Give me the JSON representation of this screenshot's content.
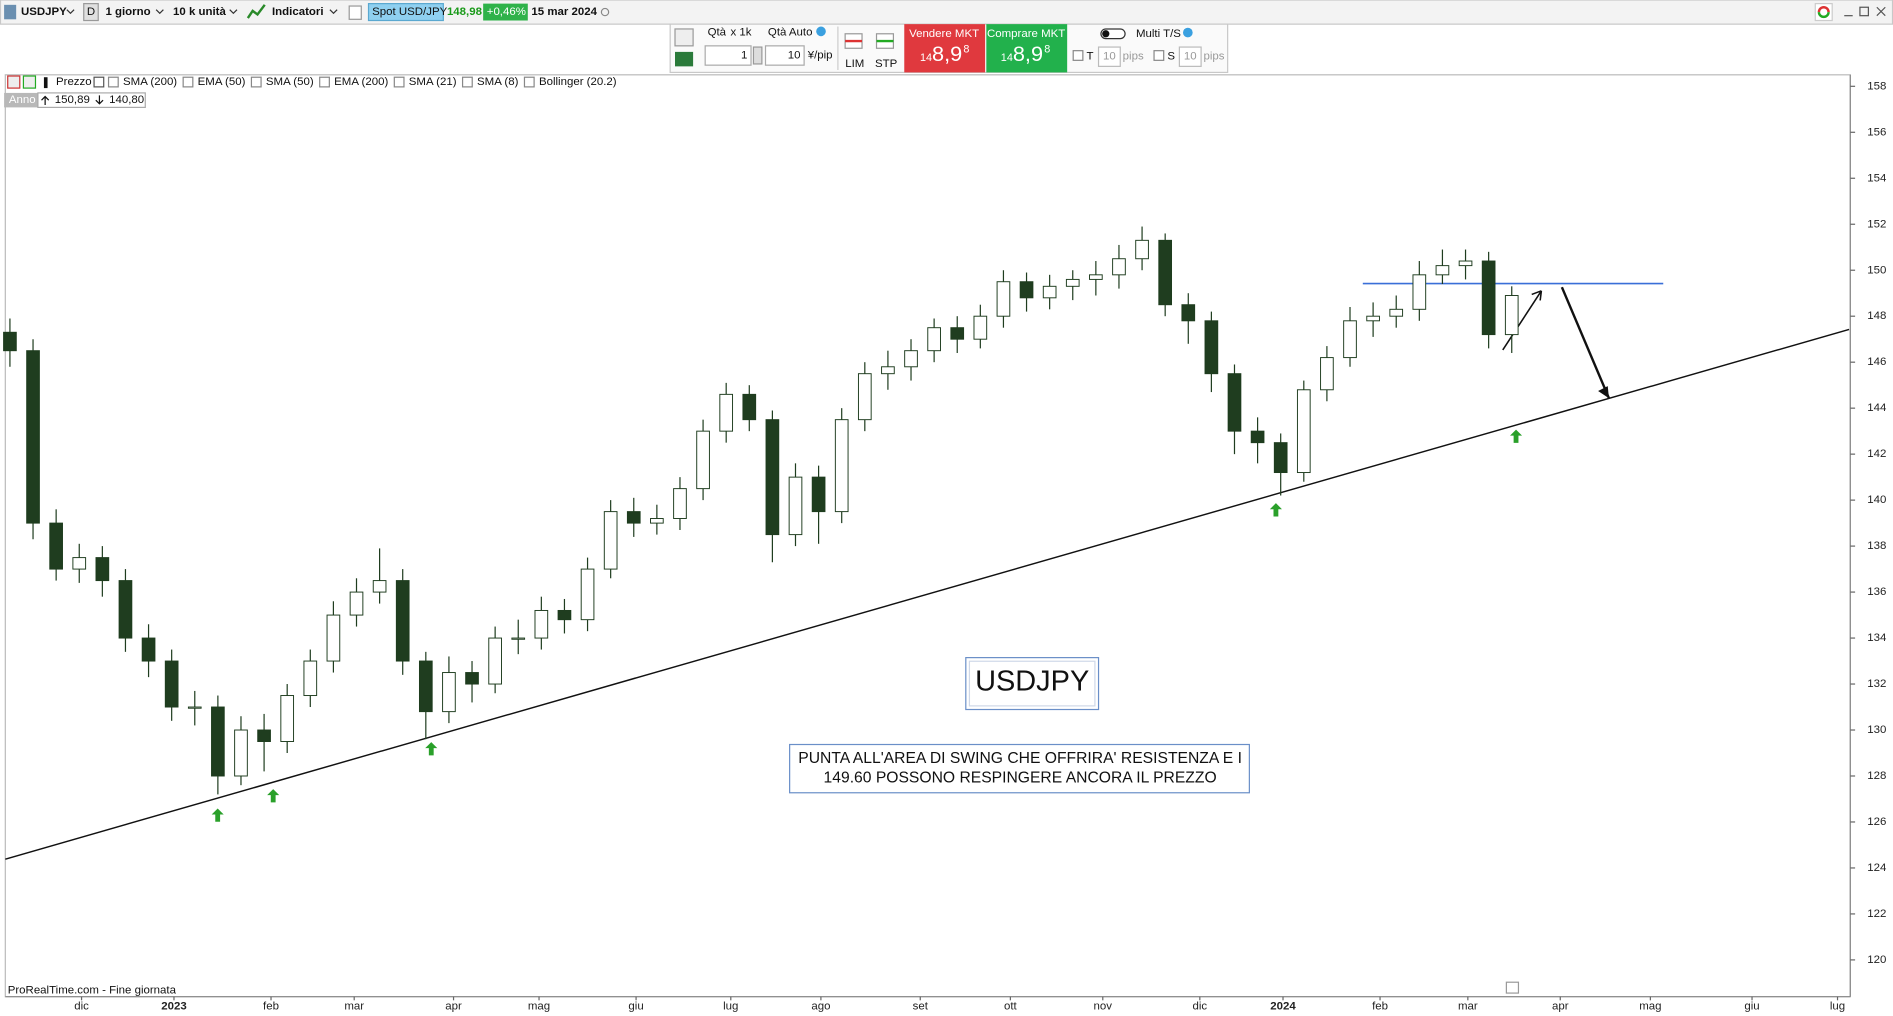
{
  "toolbar": {
    "symbol": "USDJPY",
    "period_flag": "D",
    "timeframe": "1 giorno",
    "quantity": "10 k unità",
    "indicators": "Indicatori",
    "instrument": "Spot USD/JPY",
    "price": "148,98",
    "change": "+0,46%",
    "date": "15 mar 2024"
  },
  "order_panel": {
    "qty": "Qtà",
    "qty_mult": "x 1k",
    "qty_auto": "Qtà Auto",
    "qty_value": "1",
    "pip_value": "10",
    "pip_unit": "¥/pip",
    "lim": "LIM",
    "stp": "STP",
    "sell": {
      "label": "Vendere MKT",
      "prefix": "14",
      "main": "8,9",
      "sup": "8"
    },
    "buy": {
      "label": "Comprare MKT",
      "prefix": "14",
      "main": "8,9",
      "sup": "8"
    },
    "multi": "Multi T/S",
    "t_label": "T",
    "t_value": "10",
    "t_unit": "pips",
    "s_label": "S",
    "s_value": "10",
    "s_unit": "pips"
  },
  "legend": {
    "items": [
      "Prezzo",
      "SMA (200)",
      "EMA (50)",
      "SMA (50)",
      "EMA (200)",
      "SMA (21)",
      "SMA (8)",
      "Bollinger (20.2)"
    ],
    "period": "Anno",
    "high": "150,89",
    "low": "140,80"
  },
  "annotations": {
    "title": "USDJPY",
    "note": [
      "PUNTA ALL'AREA DI  SWING CHE OFFRIRA' RESISTENZA E I",
      "149.60 POSSONO RESPINGERE ANCORA IL PREZZO"
    ]
  },
  "footer": "ProRealTime.com - Fine giornata",
  "chart_data": {
    "type": "candlestick",
    "up_color": "#ffffff",
    "down_color": "#1f3d1f",
    "outline_color": "#1f3d1f",
    "ylim": [
      118.4,
      158.5
    ],
    "yticks": [
      120,
      122,
      124,
      126,
      128,
      130,
      132,
      134,
      136,
      138,
      140,
      142,
      144,
      146,
      148,
      150,
      152,
      154,
      156,
      158
    ],
    "xlim": [
      -0.2,
      79.6
    ],
    "xticks": [
      {
        "value": 3.1,
        "label": "dic"
      },
      {
        "value": 7.1,
        "label": "2023"
      },
      {
        "value": 11.3,
        "label": "feb"
      },
      {
        "value": 14.9,
        "label": "mar"
      },
      {
        "value": 19.2,
        "label": "apr"
      },
      {
        "value": 22.9,
        "label": "mag"
      },
      {
        "value": 27.1,
        "label": "giu"
      },
      {
        "value": 31.2,
        "label": "lug"
      },
      {
        "value": 35.1,
        "label": "ago"
      },
      {
        "value": 39.4,
        "label": "set"
      },
      {
        "value": 43.3,
        "label": "ott"
      },
      {
        "value": 47.3,
        "label": "nov"
      },
      {
        "value": 51.5,
        "label": "dic"
      },
      {
        "value": 55.1,
        "label": "2024"
      },
      {
        "value": 59.3,
        "label": "feb"
      },
      {
        "value": 63.1,
        "label": "mar"
      },
      {
        "value": 67.1,
        "label": "apr"
      },
      {
        "value": 71.0,
        "label": "mag"
      },
      {
        "value": 75.4,
        "label": "giu"
      },
      {
        "value": 79.1,
        "label": "lug"
      }
    ],
    "open": [
      147.3,
      146.5,
      139,
      137,
      137.5,
      136.5,
      134,
      133,
      131,
      131,
      128,
      130,
      129.5,
      131.5,
      133,
      135,
      136,
      136.5,
      133,
      130.8,
      132.5,
      132,
      134,
      134,
      135.2,
      134.8,
      137,
      139.5,
      139,
      139.2,
      140.5,
      143,
      144.6,
      143.5,
      138.5,
      141,
      139.5,
      143.5,
      145.5,
      145.8,
      146.5,
      147.5,
      147,
      148,
      149.5,
      148.8,
      149.3,
      149.6,
      149.8,
      150.5,
      151.3,
      148.5,
      147.8,
      145.5,
      143,
      142.5,
      141.2,
      144.8,
      146.2,
      147.8,
      148,
      148.3,
      149.8,
      150.2,
      150.4,
      147.2
    ],
    "high": [
      147.9,
      147.0,
      139.6,
      138.1,
      138.0,
      137.0,
      134.6,
      133.5,
      131.7,
      131.5,
      130.6,
      130.7,
      132.0,
      133.5,
      135.6,
      136.6,
      137.9,
      137.0,
      133.4,
      133.2,
      133.0,
      134.5,
      134.8,
      135.8,
      135.7,
      137.5,
      140.0,
      140.1,
      139.8,
      141.0,
      143.5,
      145.1,
      145.0,
      143.9,
      141.6,
      141.5,
      144.0,
      146.0,
      146.5,
      147.0,
      147.9,
      148.0,
      148.5,
      150.0,
      149.9,
      149.8,
      150.0,
      150.4,
      151.1,
      151.9,
      151.6,
      149.0,
      148.2,
      145.9,
      143.6,
      142.9,
      145.2,
      146.7,
      148.4,
      148.6,
      148.9,
      150.4,
      150.9,
      150.9,
      150.8,
      149.3
    ],
    "low": [
      145.8,
      138.3,
      136.5,
      136.4,
      135.8,
      133.4,
      132.3,
      130.4,
      130.2,
      127.2,
      127.6,
      128.2,
      129.0,
      131.0,
      132.5,
      134.5,
      135.5,
      132.4,
      129.6,
      130.3,
      131.2,
      131.6,
      133.3,
      133.5,
      134.2,
      134.3,
      136.6,
      138.4,
      138.5,
      138.7,
      140.0,
      142.5,
      143.0,
      137.3,
      138.0,
      138.1,
      139.0,
      143.0,
      144.8,
      145.2,
      146.0,
      146.4,
      146.6,
      147.5,
      148.2,
      148.3,
      148.7,
      148.9,
      149.2,
      150.0,
      148.0,
      146.8,
      144.7,
      142.0,
      141.6,
      140.2,
      140.8,
      144.3,
      145.8,
      147.1,
      147.5,
      147.8,
      149.4,
      149.6,
      146.6,
      146.4
    ],
    "close": [
      146.5,
      139,
      137,
      137.5,
      136.5,
      134,
      133,
      131,
      131,
      128,
      130,
      129.5,
      131.5,
      133,
      135,
      136,
      136.5,
      133,
      130.8,
      132.5,
      132,
      134,
      134,
      135.2,
      134.8,
      137,
      139.5,
      139,
      139.2,
      140.5,
      143,
      144.6,
      143.5,
      138.5,
      141,
      139.5,
      143.5,
      145.5,
      145.8,
      146.5,
      147.5,
      147,
      148,
      149.5,
      148.8,
      149.3,
      149.6,
      149.8,
      150.5,
      151.3,
      148.5,
      147.8,
      145.5,
      143,
      142.5,
      141.2,
      144.8,
      146.2,
      147.8,
      148,
      148.3,
      149.8,
      150.2,
      150.4,
      147.2,
      148.9
    ]
  }
}
